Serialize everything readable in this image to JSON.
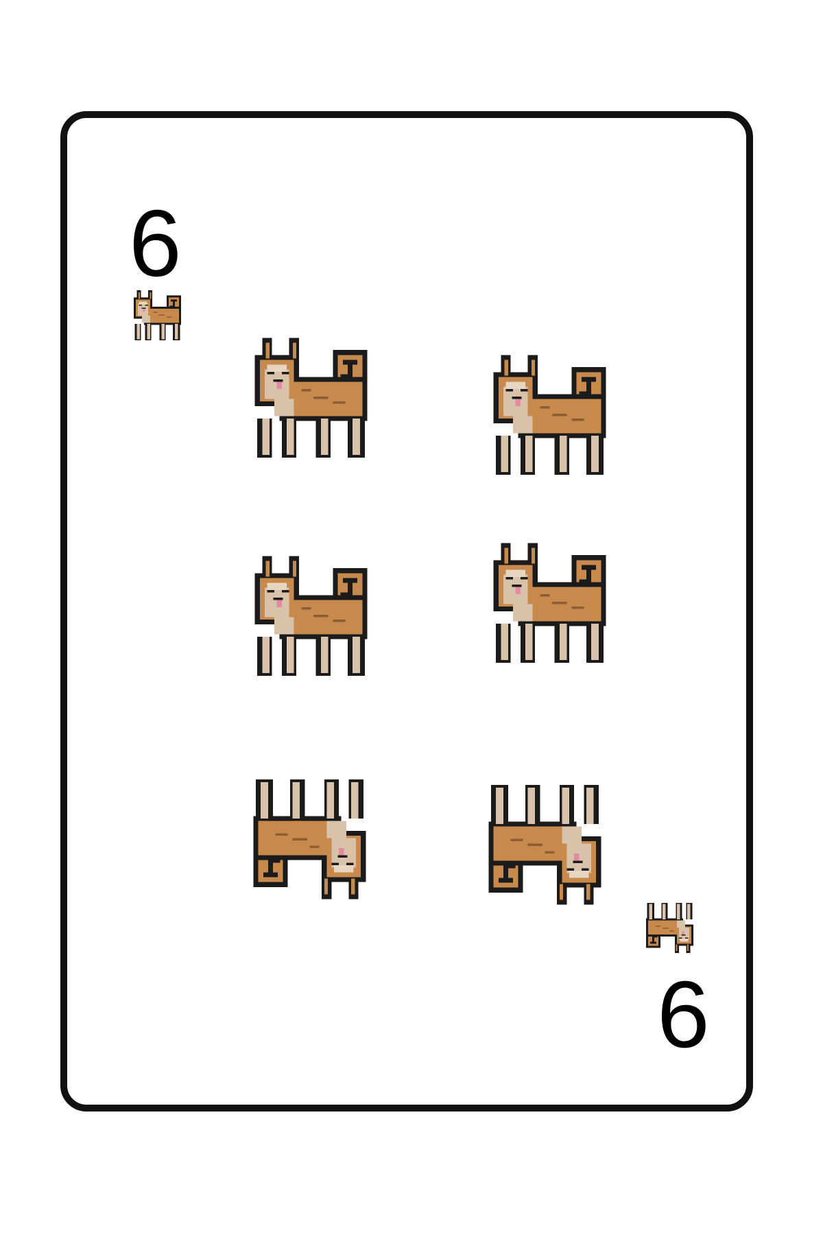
{
  "card": {
    "rank": "6",
    "suit_icon": "shiba-dog-icon",
    "pip_count": 6,
    "colors": {
      "border": "#111111",
      "text": "#000000",
      "dog_orange": "#c8894c",
      "dog_cream": "#d8c3aa",
      "outline": "#1b1b1b"
    }
  }
}
